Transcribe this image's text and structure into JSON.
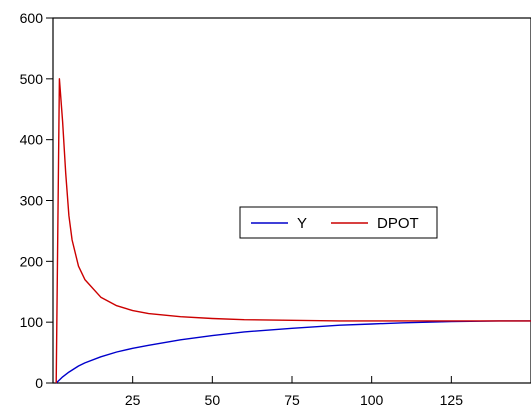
{
  "chart_data": {
    "type": "line",
    "title": "",
    "xlabel": "",
    "ylabel": "",
    "xlim": [
      0,
      150
    ],
    "ylim": [
      0,
      600
    ],
    "x_ticks": [
      25,
      50,
      75,
      100,
      125
    ],
    "y_ticks": [
      0,
      100,
      200,
      300,
      400,
      500,
      600
    ],
    "x_tick_labels": [
      "25",
      "50",
      "75",
      "100",
      "125"
    ],
    "y_tick_labels": [
      "0",
      "100",
      "200",
      "300",
      "400",
      "500",
      "600"
    ],
    "grid": false,
    "legend_placement": "center-right",
    "series": [
      {
        "name": "Y",
        "color": "#0000cc",
        "x": [
          1,
          2,
          3,
          5,
          8,
          10,
          15,
          20,
          25,
          30,
          40,
          50,
          60,
          75,
          90,
          100,
          110,
          125,
          140,
          150
        ],
        "values": [
          0,
          5,
          10,
          18,
          28,
          33,
          43,
          51,
          57,
          62,
          71,
          78,
          84,
          90,
          95,
          97,
          99,
          101,
          102,
          102
        ]
      },
      {
        "name": "DPOT",
        "color": "#cc0000",
        "x": [
          1,
          2,
          3,
          4,
          5,
          6,
          8,
          10,
          15,
          20,
          25,
          30,
          40,
          50,
          60,
          75,
          90,
          100,
          110,
          125,
          140,
          150
        ],
        "values": [
          0,
          500,
          430,
          345,
          275,
          235,
          192,
          170,
          141,
          127,
          119,
          114,
          109,
          106,
          104,
          103,
          102,
          102,
          102,
          102,
          102,
          102
        ]
      }
    ]
  }
}
